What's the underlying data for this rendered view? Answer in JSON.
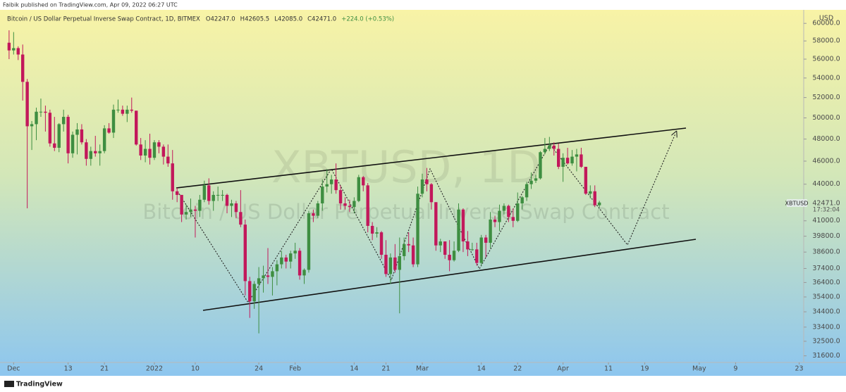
{
  "chart_data": {
    "type": "candlestick",
    "header": "Faibik published on TradingView.com, Apr 09, 2022 06:27 UTC",
    "legend_title": "Bitcoin / US Dollar Perpetual Inverse Swap Contract, 1D, BITMEX",
    "legend_ohlc": [
      "O42247.0",
      "H42605.5",
      "L42085.0",
      "C42471.0",
      "+224.0 (+0.53%)"
    ],
    "watermark": "XBTUSD, 1D",
    "watermark_subtitle": "Bitcoin / US Dollar Perpetual Inverse Swap Contract",
    "y_axis_unit": "USD",
    "symbol_tag": "XBTUSD",
    "last_price_label": "42471.0",
    "countdown": "17:32:04",
    "footer": "TradingView",
    "log_scale": true,
    "grid": false,
    "up_color": "#3e8e41",
    "down_color": "#c2185b",
    "xlim": [
      "2021-11-28",
      "2022-05-24"
    ],
    "ylim": [
      31200,
      61500
    ],
    "yticks": [
      {
        "value": 60000,
        "label": "60000.0"
      },
      {
        "value": 58000,
        "label": "58000.0"
      },
      {
        "value": 56000,
        "label": "56000.0"
      },
      {
        "value": 54000,
        "label": "54000.0"
      },
      {
        "value": 52000,
        "label": "52000.0"
      },
      {
        "value": 50000,
        "label": "50000.0"
      },
      {
        "value": 48000,
        "label": "48000.0"
      },
      {
        "value": 46000,
        "label": "46000.0"
      },
      {
        "value": 44000,
        "label": "44000.0"
      },
      {
        "value": 41000,
        "label": "41000.0"
      },
      {
        "value": 39800,
        "label": "39800.0"
      },
      {
        "value": 38600,
        "label": "38600.0"
      },
      {
        "value": 37400,
        "label": "37400.0"
      },
      {
        "value": 36400,
        "label": "36400.0"
      },
      {
        "value": 35400,
        "label": "35400.0"
      },
      {
        "value": 34400,
        "label": "34400.0"
      },
      {
        "value": 33400,
        "label": "33400.0"
      },
      {
        "value": 32500,
        "label": "32500.0"
      },
      {
        "value": 31600,
        "label": "31600.0"
      }
    ],
    "xticks": [
      {
        "value": "2021-12-01",
        "label": "Dec"
      },
      {
        "value": "2021-12-13",
        "label": "13"
      },
      {
        "value": "2021-12-21",
        "label": "21"
      },
      {
        "value": "2022-01-01",
        "label": "2022"
      },
      {
        "value": "2022-01-10",
        "label": "10"
      },
      {
        "value": "2022-01-24",
        "label": "24"
      },
      {
        "value": "2022-02-01",
        "label": "Feb"
      },
      {
        "value": "2022-02-14",
        "label": "14"
      },
      {
        "value": "2022-02-21",
        "label": "21"
      },
      {
        "value": "2022-03-01",
        "label": "Mar"
      },
      {
        "value": "2022-03-14",
        "label": "14"
      },
      {
        "value": "2022-03-22",
        "label": "22"
      },
      {
        "value": "2022-04-01",
        "label": "Apr"
      },
      {
        "value": "2022-04-11",
        "label": "11"
      },
      {
        "value": "2022-04-19",
        "label": "19"
      },
      {
        "value": "2022-05-01",
        "label": "May"
      },
      {
        "value": "2022-05-09",
        "label": "9"
      },
      {
        "value": "2022-05-23",
        "label": "23"
      }
    ],
    "x": [
      "2021-11-30",
      "2021-12-01",
      "2021-12-02",
      "2021-12-03",
      "2021-12-04",
      "2021-12-05",
      "2021-12-06",
      "2021-12-07",
      "2021-12-08",
      "2021-12-09",
      "2021-12-10",
      "2021-12-11",
      "2021-12-12",
      "2021-12-13",
      "2021-12-14",
      "2021-12-15",
      "2021-12-16",
      "2021-12-17",
      "2021-12-18",
      "2021-12-19",
      "2021-12-20",
      "2021-12-21",
      "2021-12-22",
      "2021-12-23",
      "2021-12-24",
      "2021-12-25",
      "2021-12-26",
      "2021-12-27",
      "2021-12-28",
      "2021-12-29",
      "2021-12-30",
      "2021-12-31",
      "2022-01-01",
      "2022-01-02",
      "2022-01-03",
      "2022-01-04",
      "2022-01-05",
      "2022-01-06",
      "2022-01-07",
      "2022-01-08",
      "2022-01-09",
      "2022-01-10",
      "2022-01-11",
      "2022-01-12",
      "2022-01-13",
      "2022-01-14",
      "2022-01-15",
      "2022-01-16",
      "2022-01-17",
      "2022-01-18",
      "2022-01-19",
      "2022-01-20",
      "2022-01-21",
      "2022-01-22",
      "2022-01-23",
      "2022-01-24",
      "2022-01-25",
      "2022-01-26",
      "2022-01-27",
      "2022-01-28",
      "2022-01-29",
      "2022-01-30",
      "2022-01-31",
      "2022-02-01",
      "2022-02-02",
      "2022-02-03",
      "2022-02-04",
      "2022-02-05",
      "2022-02-06",
      "2022-02-07",
      "2022-02-08",
      "2022-02-09",
      "2022-02-10",
      "2022-02-11",
      "2022-02-12",
      "2022-02-13",
      "2022-02-14",
      "2022-02-15",
      "2022-02-16",
      "2022-02-17",
      "2022-02-18",
      "2022-02-19",
      "2022-02-20",
      "2022-02-21",
      "2022-02-22",
      "2022-02-23",
      "2022-02-24",
      "2022-02-25",
      "2022-02-26",
      "2022-02-27",
      "2022-02-28",
      "2022-03-01",
      "2022-03-02",
      "2022-03-03",
      "2022-03-04",
      "2022-03-05",
      "2022-03-06",
      "2022-03-07",
      "2022-03-08",
      "2022-03-09",
      "2022-03-10",
      "2022-03-11",
      "2022-03-12",
      "2022-03-13",
      "2022-03-14",
      "2022-03-15",
      "2022-03-16",
      "2022-03-17",
      "2022-03-18",
      "2022-03-19",
      "2022-03-20",
      "2022-03-21",
      "2022-03-22",
      "2022-03-23",
      "2022-03-24",
      "2022-03-25",
      "2022-03-26",
      "2022-03-27",
      "2022-03-28",
      "2022-03-29",
      "2022-03-30",
      "2022-03-31",
      "2022-04-01",
      "2022-04-02",
      "2022-04-03",
      "2022-04-04",
      "2022-04-05",
      "2022-04-06",
      "2022-04-07",
      "2022-04-08",
      "2022-04-09"
    ],
    "open": [
      57800,
      56950,
      57200,
      56500,
      53600,
      49200,
      49400,
      50600,
      50600,
      50500,
      47600,
      47200,
      49400,
      50100,
      46700,
      48400,
      48900,
      47700,
      46200,
      46900,
      46700,
      46900,
      49000,
      48600,
      50800,
      50800,
      50400,
      50800,
      50700,
      47500,
      46500,
      47100,
      46300,
      47700,
      47300,
      46400,
      45800,
      43400,
      43100,
      41500,
      41700,
      41900,
      41800,
      42700,
      43900,
      42600,
      43100,
      43100,
      43100,
      42200,
      42400,
      41700,
      40700,
      36500,
      35100,
      36300,
      36700,
      36900,
      36800,
      37200,
      37700,
      38200,
      37900,
      38500,
      38700,
      36900,
      37300,
      41600,
      41400,
      42400,
      43800,
      44000,
      44400,
      43500,
      42400,
      42200,
      42100,
      42600,
      44600,
      43900,
      40600,
      40000,
      40100,
      38400,
      37000,
      38200,
      37300,
      38300,
      39200,
      39100,
      37700,
      43200,
      44400,
      44000,
      42500,
      39100,
      39400,
      38400,
      38000,
      38700,
      41900,
      39400,
      38800,
      38800,
      37800,
      39700,
      39300,
      41100,
      40900,
      41800,
      42200,
      41300,
      41000,
      42400,
      42900,
      44000,
      44300,
      44500,
      46800,
      47100,
      47400,
      47100,
      45500,
      46300,
      45800,
      46400,
      46600,
      45500,
      43200,
      43400,
      42247
    ],
    "high": [
      59200,
      59000,
      57400,
      57600,
      53900,
      49700,
      51000,
      51900,
      51200,
      50800,
      50100,
      49500,
      50800,
      50300,
      48700,
      49500,
      49400,
      48000,
      47300,
      48300,
      47500,
      49300,
      49500,
      51300,
      51800,
      51200,
      51200,
      52000,
      50700,
      48100,
      47900,
      48500,
      47900,
      47900,
      47500,
      47500,
      47000,
      43700,
      43100,
      42300,
      42800,
      42200,
      43100,
      44300,
      44500,
      43400,
      43800,
      43500,
      43200,
      42700,
      42600,
      43500,
      41100,
      36800,
      36500,
      37500,
      37600,
      38900,
      37500,
      38000,
      38700,
      38400,
      38700,
      39300,
      38900,
      37400,
      41800,
      41900,
      42600,
      44400,
      45300,
      44800,
      45800,
      43900,
      42900,
      42700,
      42900,
      44800,
      44700,
      44100,
      40900,
      40500,
      40200,
      39500,
      38500,
      39200,
      39700,
      39700,
      40100,
      39700,
      43800,
      44900,
      45400,
      44100,
      42500,
      39600,
      39400,
      39500,
      39400,
      42400,
      42000,
      40200,
      39300,
      39300,
      39900,
      39900,
      41700,
      41400,
      42300,
      42400,
      42300,
      42000,
      43300,
      43000,
      44200,
      45000,
      44800,
      46900,
      48100,
      48200,
      47700,
      47600,
      46700,
      47200,
      47000,
      47100,
      47200,
      45500,
      43900,
      43900,
      42605.5
    ],
    "low": [
      56000,
      56500,
      55900,
      51700,
      42000,
      47000,
      47900,
      50100,
      48700,
      47300,
      46900,
      46800,
      48700,
      45800,
      46300,
      46600,
      47500,
      45600,
      45600,
      46400,
      45600,
      46700,
      48500,
      48100,
      50500,
      50200,
      49600,
      50500,
      47400,
      46100,
      45900,
      45700,
      46100,
      46700,
      45700,
      45500,
      42700,
      42500,
      40900,
      41100,
      41300,
      39700,
      41300,
      42500,
      42300,
      41800,
      42600,
      42600,
      41600,
      41300,
      41200,
      40500,
      35500,
      34000,
      34600,
      33000,
      35700,
      36300,
      35500,
      36200,
      37400,
      37400,
      37400,
      38100,
      36600,
      36300,
      37100,
      40900,
      41200,
      41800,
      43300,
      43200,
      43200,
      41900,
      41900,
      41700,
      41600,
      42500,
      43400,
      40100,
      39500,
      39700,
      38100,
      36800,
      36300,
      37100,
      34300,
      38000,
      38600,
      37500,
      37500,
      42900,
      43400,
      41900,
      38700,
      38600,
      38100,
      37200,
      37900,
      38600,
      38600,
      38300,
      38700,
      37600,
      37600,
      38200,
      38900,
      40500,
      40200,
      41500,
      40900,
      40500,
      40900,
      41900,
      42600,
      43600,
      44100,
      44400,
      46600,
      46900,
      46500,
      45300,
      44200,
      45700,
      45600,
      45100,
      45400,
      43100,
      42800,
      42100,
      42085
    ],
    "close": [
      56950,
      57200,
      56500,
      53600,
      49200,
      49400,
      50600,
      50600,
      50500,
      47600,
      47200,
      49400,
      50100,
      46700,
      48400,
      48900,
      47700,
      46200,
      46900,
      46700,
      46900,
      49000,
      48600,
      50800,
      50800,
      50400,
      50800,
      50700,
      47500,
      46500,
      47100,
      46300,
      47700,
      47300,
      46400,
      45800,
      43400,
      43100,
      41500,
      41700,
      41900,
      41800,
      42700,
      43900,
      42600,
      43100,
      43100,
      43100,
      42200,
      42400,
      41700,
      40700,
      36500,
      35100,
      36300,
      36700,
      36900,
      36800,
      37200,
      37700,
      38200,
      37900,
      38500,
      38700,
      36900,
      37300,
      41600,
      41400,
      42400,
      43800,
      44000,
      44400,
      43500,
      42400,
      42200,
      42100,
      42600,
      44600,
      43900,
      40600,
      40000,
      40100,
      38400,
      37000,
      38200,
      37300,
      38300,
      39200,
      39100,
      37700,
      43200,
      44400,
      44000,
      42500,
      39100,
      39400,
      38400,
      38000,
      38700,
      41900,
      39400,
      38800,
      38800,
      37800,
      39700,
      39300,
      41100,
      40900,
      41800,
      42200,
      41300,
      41000,
      42400,
      42900,
      44000,
      44300,
      44500,
      46800,
      47100,
      47400,
      47100,
      45500,
      46300,
      45800,
      46400,
      46600,
      45500,
      43200,
      43400,
      42247,
      42471
    ]
  }
}
